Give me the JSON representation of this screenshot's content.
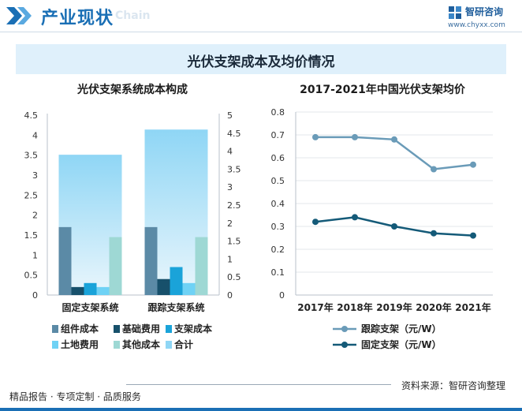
{
  "header": {
    "title": "产业现状",
    "title_en": "Chain",
    "brand_name": "智研咨询",
    "brand_url": "www.chyxx.com"
  },
  "banner_title": "光伏支架成本及均价情况",
  "footer": {
    "left": "精品报告 · 专项定制 · 品质服务",
    "source": "资料来源：智研咨询整理"
  },
  "colors": {
    "accent": "#1a6fb5",
    "component_cost": "#5b8aa6",
    "foundation_cost": "#17506b",
    "bracket_cost": "#1aa3d9",
    "land_cost": "#6fd2f5",
    "other_cost": "#9ed8d4",
    "total": "#8fd6f5",
    "tracking_line": "#6a9bb8",
    "fixed_line": "#145a78"
  },
  "chart_data": [
    {
      "type": "bar",
      "title": "光伏支架系统成本构成",
      "categories": [
        "固定支架系统",
        "跟踪支架系统"
      ],
      "series": [
        {
          "name": "组件成本",
          "values": [
            1.7,
            1.7
          ],
          "axis": "left"
        },
        {
          "name": "基础费用",
          "values": [
            0.2,
            0.4
          ],
          "axis": "left"
        },
        {
          "name": "支架成本",
          "values": [
            0.3,
            0.7
          ],
          "axis": "left"
        },
        {
          "name": "土地费用",
          "values": [
            0.2,
            0.3
          ],
          "axis": "left"
        },
        {
          "name": "其他成本",
          "values": [
            1.45,
            1.45
          ],
          "axis": "left"
        },
        {
          "name": "合计",
          "values": [
            3.9,
            4.6
          ],
          "axis": "right"
        }
      ],
      "left_ticks": [
        "0",
        "0.5",
        "1",
        "1.5",
        "2",
        "2.5",
        "3",
        "3.5",
        "4",
        "4.5"
      ],
      "right_ticks": [
        "0",
        "0.5",
        "1",
        "1.5",
        "2",
        "2.5",
        "3",
        "3.5",
        "4",
        "4.5",
        "5"
      ],
      "ylim_left": [
        0,
        4.5
      ],
      "ylim_right": [
        0,
        5
      ],
      "legend_position": "bottom"
    },
    {
      "type": "line",
      "title": "2017-2021年中国光伏支架均价",
      "x": [
        "2017年",
        "2018年",
        "2019年",
        "2020年",
        "2021年"
      ],
      "series": [
        {
          "name": "跟踪支架（元/W）",
          "values": [
            0.69,
            0.69,
            0.68,
            0.55,
            0.57
          ]
        },
        {
          "name": "固定支架（元/W）",
          "values": [
            0.32,
            0.34,
            0.3,
            0.27,
            0.26
          ]
        }
      ],
      "y_ticks": [
        "0",
        "0.1",
        "0.2",
        "0.3",
        "0.4",
        "0.5",
        "0.6",
        "0.7",
        "0.8"
      ],
      "ylim": [
        0,
        0.8
      ],
      "grid": true,
      "legend_position": "bottom"
    }
  ]
}
